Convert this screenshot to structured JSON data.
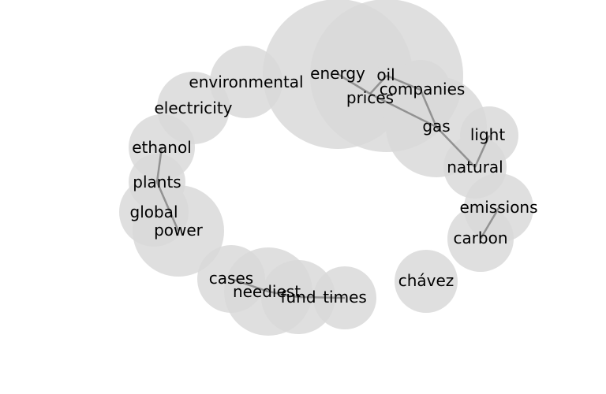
{
  "colors": {
    "bubble_fill": "#d9d9d9",
    "edge_stroke": "#808080",
    "label": "#000000"
  },
  "nodes": [
    {
      "id": "energy",
      "label": "energy"
    },
    {
      "id": "oil",
      "label": "oil"
    },
    {
      "id": "prices",
      "label": "prices"
    },
    {
      "id": "companies",
      "label": "companies"
    },
    {
      "id": "gas",
      "label": "gas"
    },
    {
      "id": "light",
      "label": "light"
    },
    {
      "id": "natural",
      "label": "natural"
    },
    {
      "id": "emissions",
      "label": "emissions"
    },
    {
      "id": "carbon",
      "label": "carbon"
    },
    {
      "id": "chavez",
      "label": "chávez"
    },
    {
      "id": "environmental",
      "label": "environmental"
    },
    {
      "id": "electricity",
      "label": "electricity"
    },
    {
      "id": "ethanol",
      "label": "ethanol"
    },
    {
      "id": "plants",
      "label": "plants"
    },
    {
      "id": "global",
      "label": "global"
    },
    {
      "id": "power",
      "label": "power"
    },
    {
      "id": "cases",
      "label": "cases"
    },
    {
      "id": "neediest",
      "label": "neediest"
    },
    {
      "id": "fund",
      "label": "fund"
    },
    {
      "id": "times",
      "label": "times"
    }
  ],
  "edges": [
    [
      "energy",
      "prices"
    ],
    [
      "oil",
      "prices"
    ],
    [
      "oil",
      "companies"
    ],
    [
      "prices",
      "gas"
    ],
    [
      "companies",
      "gas"
    ],
    [
      "gas",
      "natural"
    ],
    [
      "light",
      "natural"
    ],
    [
      "emissions",
      "carbon"
    ],
    [
      "ethanol",
      "plants"
    ],
    [
      "plants",
      "power"
    ],
    [
      "cases",
      "neediest"
    ],
    [
      "neediest",
      "fund"
    ],
    [
      "fund",
      "times"
    ]
  ]
}
